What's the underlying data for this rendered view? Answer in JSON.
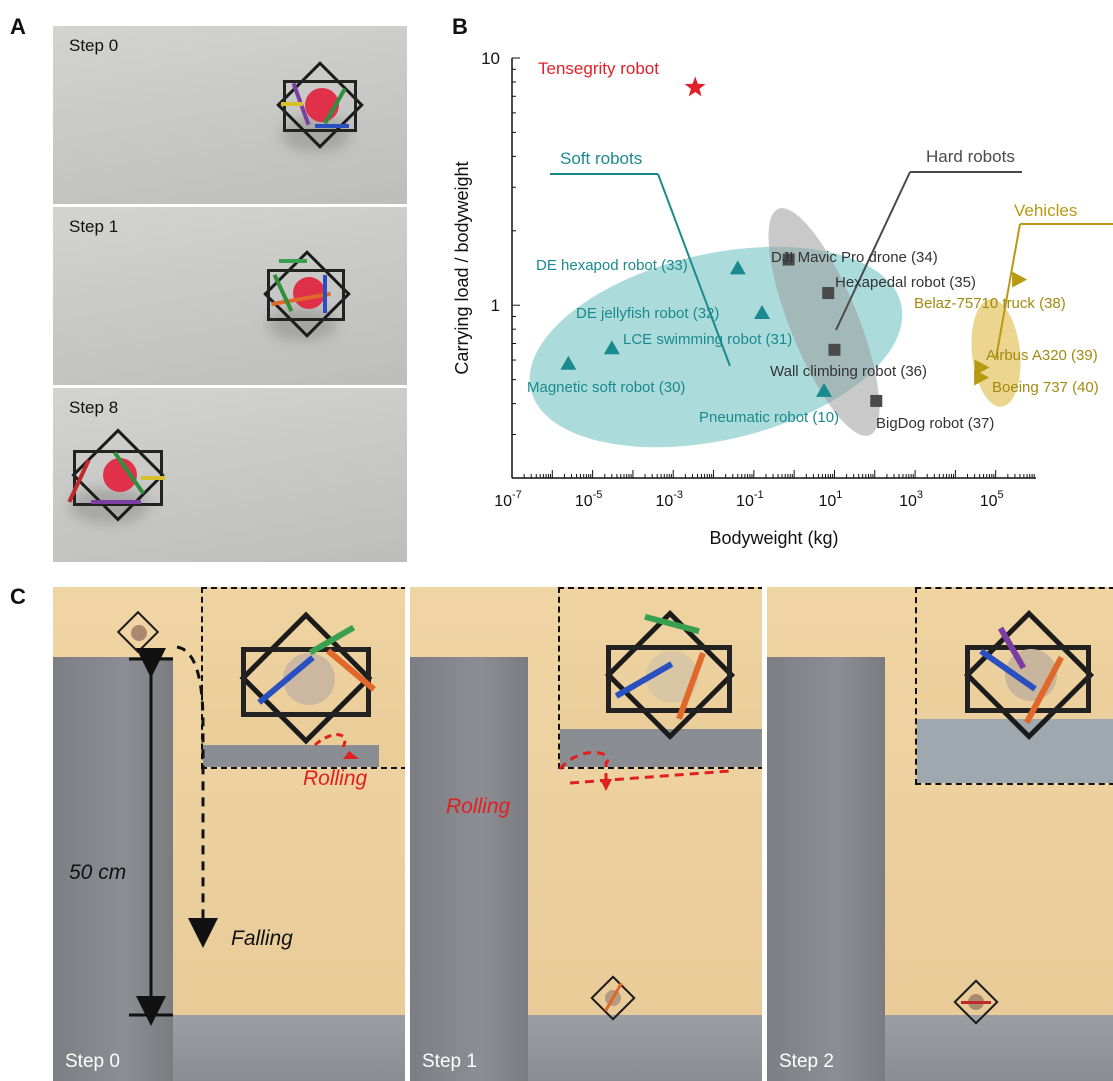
{
  "panels": {
    "a": "A",
    "b": "B",
    "c": "C"
  },
  "panel_a": {
    "steps": [
      "Step 0",
      "Step 1",
      "Step 8"
    ]
  },
  "panel_c": {
    "steps": [
      "Step 0",
      "Step 1",
      "Step 2"
    ],
    "height_label": "50 cm",
    "falling_label": "Falling",
    "rolling_label": "Rolling"
  },
  "chart_data": {
    "type": "scatter",
    "xlabel": "Bodyweight (kg)",
    "ylabel": "Carrying load / bodyweight",
    "x_scale": "log",
    "y_scale": "log",
    "xlim": [
      1e-07,
      1000000.0
    ],
    "ylim": [
      0.2,
      10
    ],
    "x_ticks": [
      {
        "base": "10",
        "exp": "-7",
        "value": 1e-07
      },
      {
        "base": "10",
        "exp": "-5",
        "value": 1e-05
      },
      {
        "base": "10",
        "exp": "-3",
        "value": 0.001
      },
      {
        "base": "10",
        "exp": "-1",
        "value": 0.1
      },
      {
        "base": "10",
        "exp": "1",
        "value": 10
      },
      {
        "base": "10",
        "exp": "3",
        "value": 1000
      },
      {
        "base": "10",
        "exp": "5",
        "value": 100000
      }
    ],
    "y_ticks": [
      {
        "label": "1",
        "value": 1
      },
      {
        "label": "10",
        "value": 10
      }
    ],
    "groups": [
      {
        "name": "Soft robots",
        "color": "#1b8a8e",
        "marker": "triangle-up"
      },
      {
        "name": "Hard robots",
        "color": "#4a4a4a",
        "marker": "square"
      },
      {
        "name": "Vehicles",
        "color": "#b79a12",
        "marker": "triangle-right"
      }
    ],
    "points": [
      {
        "label": "Tensegrity robot",
        "x": 0.0035,
        "y": 7.6,
        "marker": "star",
        "color": "#e0202a"
      },
      {
        "label": "Magnetic soft robot (30)",
        "x": 2.5e-06,
        "y": 0.58,
        "marker": "triangle-up",
        "color": "#1b8a8e"
      },
      {
        "label": "LCE swimming robot (31)",
        "x": 3e-05,
        "y": 0.67,
        "marker": "triangle-up",
        "color": "#1b8a8e"
      },
      {
        "label": "DE jellyfish robot (32)",
        "x": 0.16,
        "y": 0.93,
        "marker": "triangle-up",
        "color": "#1b8a8e"
      },
      {
        "label": "DE hexapod robot (33)",
        "x": 0.04,
        "y": 1.41,
        "marker": "triangle-up",
        "color": "#1b8a8e"
      },
      {
        "label": "Pneumatic robot (10)",
        "x": 5.5,
        "y": 0.45,
        "marker": "triangle-up",
        "color": "#1b8a8e"
      },
      {
        "label": "DJI Mavic Pro drone (34)",
        "x": 0.73,
        "y": 1.53,
        "marker": "square",
        "color": "#4a4a4a"
      },
      {
        "label": "Hexapedal robot (35)",
        "x": 7,
        "y": 1.12,
        "marker": "square",
        "color": "#4a4a4a"
      },
      {
        "label": "Wall climbing robot (36)",
        "x": 10,
        "y": 0.66,
        "marker": "square",
        "color": "#4a4a4a"
      },
      {
        "label": "BigDog robot (37)",
        "x": 109,
        "y": 0.41,
        "marker": "square",
        "color": "#4a4a4a"
      },
      {
        "label": "Belaz-75710 truck (38)",
        "x": 360000,
        "y": 1.27,
        "marker": "triangle-right",
        "color": "#b79a12"
      },
      {
        "label": "Airbus A320 (39)",
        "x": 42000,
        "y": 0.56,
        "marker": "triangle-right",
        "color": "#b79a12"
      },
      {
        "label": "Boeing 737 (40)",
        "x": 41000,
        "y": 0.51,
        "marker": "triangle-right",
        "color": "#b79a12"
      }
    ]
  }
}
